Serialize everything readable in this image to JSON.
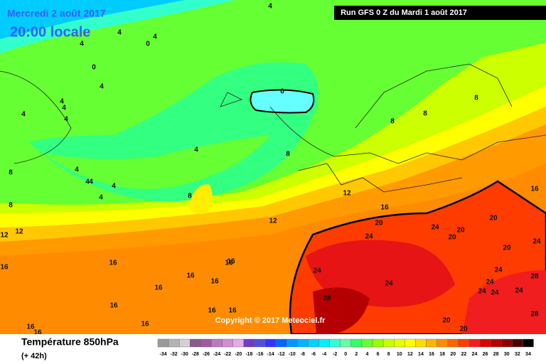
{
  "header": {
    "date": "Mercredi 2 août 2017",
    "time": "20:00 locale",
    "run": "Run GFS 0 Z du Mardi 1 août 2017"
  },
  "copyright": "Copyright © 2017 Meteociel.fr",
  "footer": {
    "title": "Température 850hPa",
    "lead": "(+ 42h)"
  },
  "scale": {
    "values": [
      -34,
      -32,
      -30,
      -28,
      -26,
      -24,
      -22,
      -20,
      -18,
      -16,
      -14,
      -12,
      -10,
      -8,
      -6,
      -4,
      -2,
      0,
      2,
      4,
      6,
      8,
      10,
      12,
      14,
      16,
      18,
      20,
      22,
      24,
      26,
      28,
      30,
      32,
      34
    ],
    "colors": [
      "#9a9a9a",
      "#b4b4b4",
      "#d2d2d2",
      "#8c5a8c",
      "#a05aa0",
      "#be78be",
      "#d28cd2",
      "#e6aae6",
      "#6e3cc8",
      "#5050dc",
      "#3232ff",
      "#0064ff",
      "#0096ff",
      "#00b4ff",
      "#00d2ff",
      "#00f0ff",
      "#32ffd2",
      "#64ffa0",
      "#32ff64",
      "#64ff32",
      "#96ff00",
      "#c8ff00",
      "#e6ff00",
      "#ffff00",
      "#ffdc00",
      "#ffb400",
      "#ff8c00",
      "#ff6400",
      "#ff3c00",
      "#f01e1e",
      "#dc0000",
      "#b40000",
      "#8c0000",
      "#500000",
      "#000000"
    ]
  },
  "contour_labels": [
    4,
    4,
    4,
    0,
    4,
    0,
    4,
    4,
    4,
    4,
    0,
    4,
    4,
    4,
    4,
    4,
    4,
    8,
    4,
    8,
    12,
    12,
    12,
    12,
    16,
    16,
    20,
    24,
    24,
    20,
    20,
    20,
    20,
    24,
    24,
    28,
    16,
    16,
    16,
    16,
    16,
    16,
    16,
    24,
    24,
    28,
    24,
    24,
    24,
    24,
    28,
    16,
    16,
    16,
    16,
    16,
    16,
    20,
    20,
    8,
    8,
    8,
    8,
    8
  ]
}
